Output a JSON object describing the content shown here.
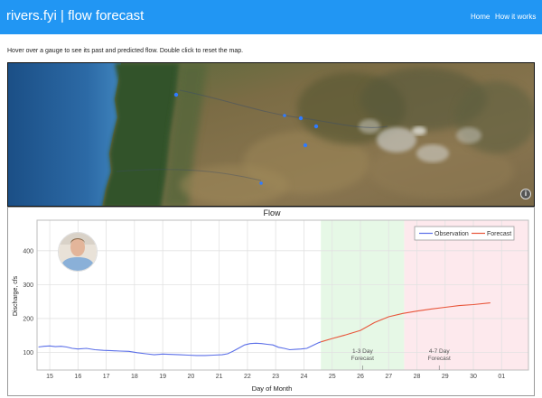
{
  "navbar": {
    "brand": "rivers.fyi | flow forecast",
    "links": [
      {
        "label": "Home"
      },
      {
        "label": "How it works"
      }
    ]
  },
  "instructions": "Hover over a gauge to see its past and predicted flow. Double click to reset the map.",
  "map": {
    "info_icon": "info-icon",
    "gauges_visible": 6
  },
  "chart_data": {
    "type": "line",
    "title": "Flow",
    "xlabel": "Day of Month",
    "ylabel": "Discharge, cfs",
    "x_ticks": [
      "15",
      "16",
      "17",
      "18",
      "19",
      "20",
      "21",
      "22",
      "23",
      "24",
      "25",
      "26",
      "27",
      "28",
      "29",
      "30",
      "01"
    ],
    "xlim": [
      14.55,
      31.95
    ],
    "ylim": [
      48,
      490
    ],
    "y_ticks": [
      100,
      200,
      300,
      400
    ],
    "grid": true,
    "legend_position": "top-right",
    "regions": [
      {
        "label": "1-3 Day Forecast",
        "lines": [
          "1-3 Day",
          "Forecast"
        ],
        "x_start": 24.6,
        "x_end": 27.55,
        "color": "#e6f8e6"
      },
      {
        "label": "4-7 Day Forecast",
        "lines": [
          "4-7 Day",
          "Forecast"
        ],
        "x_start": 27.55,
        "x_end": 31.95,
        "color": "#fde9ed"
      }
    ],
    "series": [
      {
        "name": "Observation",
        "color": "#5b6fe8",
        "x": [
          14.6,
          14.8,
          15.0,
          15.2,
          15.4,
          15.6,
          15.8,
          16.0,
          16.3,
          16.6,
          16.9,
          17.2,
          17.5,
          17.8,
          18.1,
          18.4,
          18.7,
          19.0,
          19.3,
          19.6,
          19.9,
          20.2,
          20.5,
          20.8,
          21.1,
          21.3,
          21.5,
          21.7,
          21.9,
          22.1,
          22.3,
          22.5,
          22.7,
          22.9,
          23.1,
          23.3,
          23.5,
          23.7,
          23.9,
          24.1,
          24.3,
          24.5,
          24.6
        ],
        "y": [
          116,
          118,
          119,
          117,
          118,
          116,
          112,
          110,
          112,
          108,
          106,
          105,
          104,
          103,
          99,
          96,
          93,
          95,
          94,
          93,
          92,
          91,
          91,
          92,
          93,
          96,
          104,
          113,
          122,
          126,
          127,
          126,
          124,
          122,
          115,
          112,
          108,
          109,
          110,
          112,
          120,
          128,
          131
        ]
      },
      {
        "name": "Forecast",
        "color": "#e8553a",
        "x": [
          24.6,
          25.0,
          25.5,
          26.0,
          26.5,
          27.0,
          27.5,
          28.0,
          28.5,
          29.0,
          29.5,
          30.0,
          30.6
        ],
        "y": [
          131,
          141,
          152,
          165,
          188,
          205,
          215,
          222,
          228,
          233,
          238,
          241,
          246
        ]
      }
    ]
  }
}
